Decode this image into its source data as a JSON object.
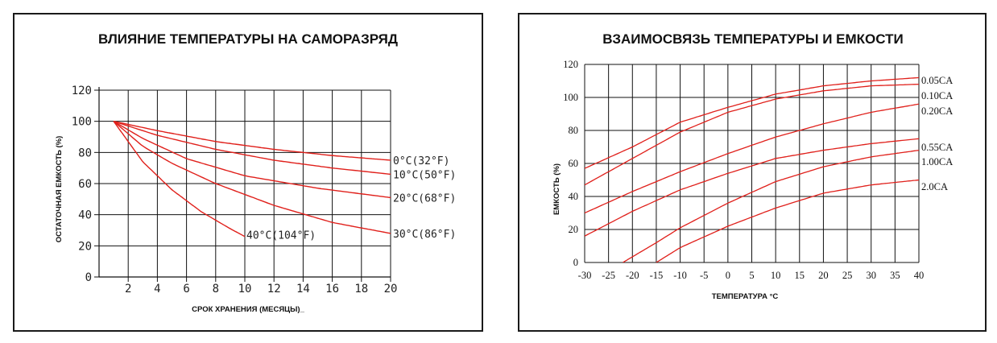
{
  "chart_data": [
    {
      "type": "line",
      "title": "ВЛИЯНИЕ ТЕМПЕРАТУРЫ НА САМОРАЗРЯД",
      "xlabel": "СРОК ХРАНЕНИЯ (МЕСЯЦЫ)_",
      "ylabel": "ОСТАТОЧНАЯ ЕМКОСТЬ (%)",
      "xlim": [
        0,
        20
      ],
      "ylim": [
        0,
        120
      ],
      "x_ticks": [
        "2",
        "4",
        "6",
        "8",
        "10",
        "12",
        "14",
        "16",
        "18",
        "20"
      ],
      "y_ticks": [
        "0",
        "20",
        "40",
        "60",
        "80",
        "100",
        "120"
      ],
      "grid": true,
      "line_color": "#e0201b",
      "series": [
        {
          "name": "0°C(32°F)",
          "x": [
            1,
            4,
            8,
            12,
            16,
            20
          ],
          "y": [
            100,
            94,
            87,
            82,
            78,
            75
          ]
        },
        {
          "name": "10°C(50°F)",
          "x": [
            1,
            4,
            8,
            12,
            16,
            20
          ],
          "y": [
            100,
            91,
            82,
            75,
            70,
            66
          ]
        },
        {
          "name": "20°C(68°F)",
          "x": [
            1,
            3,
            6,
            10,
            15,
            20
          ],
          "y": [
            100,
            89,
            76,
            65,
            57,
            51
          ]
        },
        {
          "name": "30°C(86°F)",
          "x": [
            1,
            3,
            5,
            8,
            12,
            16,
            20
          ],
          "y": [
            100,
            84,
            73,
            60,
            46,
            35,
            28
          ]
        },
        {
          "name": "40°C(104°F)",
          "x": [
            1,
            3,
            5,
            7,
            9,
            10
          ],
          "y": [
            100,
            74,
            56,
            42,
            31,
            26
          ]
        }
      ]
    },
    {
      "type": "line",
      "title": "ВЗАИМОСВЯЗЬ ТЕМПЕРАТУРЫ И ЕМКОСТИ",
      "xlabel": "ТЕМПЕРАТУРА °С",
      "ylabel": "ЕМКОСТЬ (%)",
      "xlim": [
        -30,
        40
      ],
      "ylim": [
        0,
        120
      ],
      "x_ticks": [
        "-30",
        "-25",
        "-20",
        "-15",
        "-10",
        "-5",
        "0",
        "5",
        "10",
        "15",
        "20",
        "25",
        "30",
        "35",
        "40"
      ],
      "y_ticks": [
        "0",
        "20",
        "40",
        "60",
        "80",
        "100",
        "120"
      ],
      "grid": true,
      "line_color": "#e0201b",
      "series": [
        {
          "name": "0.05CA",
          "x": [
            -30,
            -20,
            -10,
            0,
            10,
            20,
            30,
            40
          ],
          "y": [
            57,
            70,
            85,
            94,
            102,
            107,
            110,
            112
          ]
        },
        {
          "name": "0.10CA",
          "x": [
            -30,
            -20,
            -10,
            0,
            10,
            20,
            30,
            40
          ],
          "y": [
            47,
            63,
            79,
            91,
            99,
            104,
            107,
            108
          ]
        },
        {
          "name": "0.20CA",
          "x": [
            -30,
            -20,
            -10,
            0,
            10,
            20,
            30,
            40
          ],
          "y": [
            30,
            43,
            55,
            66,
            76,
            84,
            91,
            96
          ]
        },
        {
          "name": "0.55CA",
          "x": [
            -30,
            -20,
            -10,
            0,
            10,
            20,
            30,
            40
          ],
          "y": [
            16,
            31,
            44,
            54,
            63,
            68,
            72,
            75
          ]
        },
        {
          "name": "1.00CA",
          "x": [
            -22,
            -15,
            -10,
            0,
            10,
            20,
            30,
            40
          ],
          "y": [
            0,
            12,
            21,
            36,
            49,
            58,
            64,
            68
          ]
        },
        {
          "name": "2.0CA",
          "x": [
            -15,
            -10,
            0,
            10,
            20,
            30,
            40
          ],
          "y": [
            0,
            9,
            22,
            33,
            42,
            47,
            50
          ]
        }
      ]
    }
  ]
}
